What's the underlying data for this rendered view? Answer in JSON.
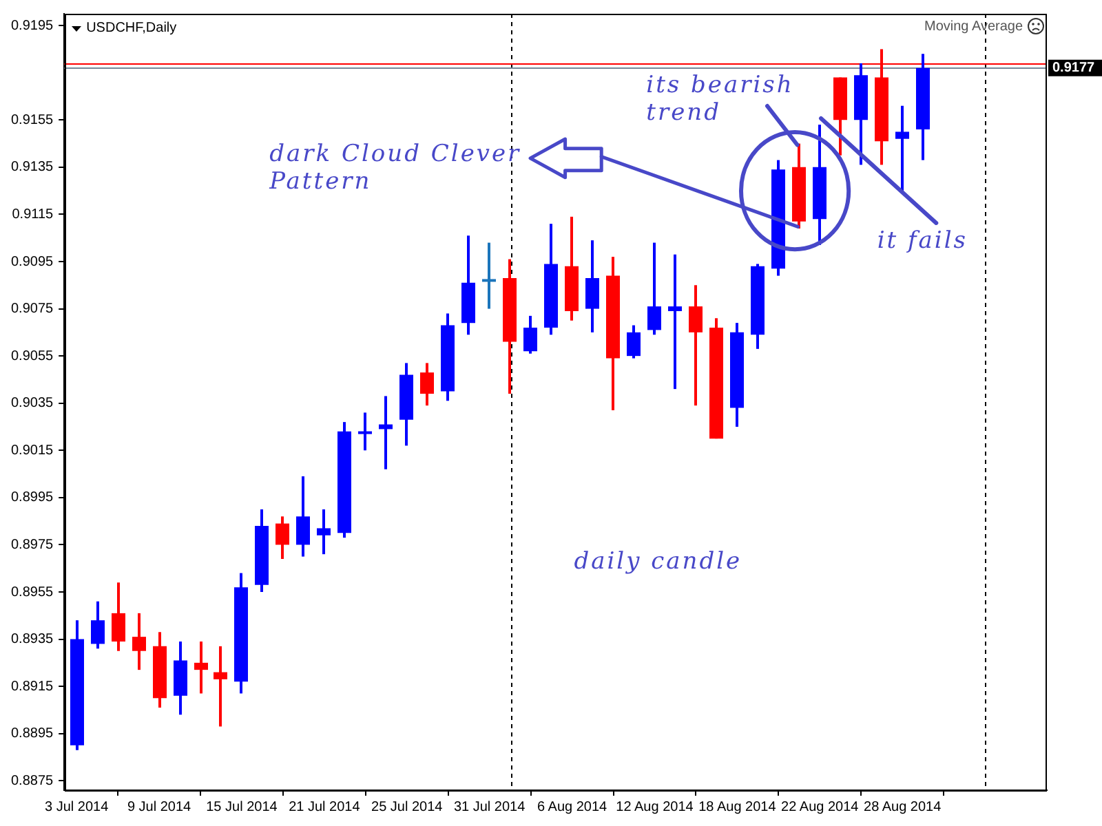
{
  "chart_data": {
    "type": "candlestick",
    "title": "USDCHF,Daily",
    "categories": [
      "3 Jul 2014",
      null,
      null,
      null,
      "9 Jul 2014",
      null,
      null,
      null,
      "15 Jul 2014",
      null,
      null,
      null,
      "21 Jul 2014",
      null,
      null,
      null,
      "25 Jul 2014",
      null,
      null,
      null,
      "31 Jul 2014",
      null,
      null,
      null,
      "6 Aug 2014",
      null,
      null,
      null,
      "12 Aug 2014",
      null,
      null,
      null,
      "18 Aug 2014",
      null,
      null,
      null,
      "22 Aug 2014",
      null,
      null,
      null,
      "28 Aug 2014",
      null
    ],
    "ohlc": [
      [
        0.889,
        0.8943,
        0.8888,
        0.8935
      ],
      [
        0.8933,
        0.8951,
        0.8931,
        0.8943
      ],
      [
        0.8946,
        0.8959,
        0.893,
        0.8934
      ],
      [
        0.8936,
        0.8946,
        0.8922,
        0.893
      ],
      [
        0.8932,
        0.8938,
        0.8906,
        0.891
      ],
      [
        0.8911,
        0.8934,
        0.8903,
        0.8926
      ],
      [
        0.8925,
        0.8934,
        0.8912,
        0.8922
      ],
      [
        0.8921,
        0.8932,
        0.8898,
        0.8918
      ],
      [
        0.8917,
        0.8963,
        0.8912,
        0.8957
      ],
      [
        0.8958,
        0.899,
        0.8955,
        0.8983
      ],
      [
        0.8984,
        0.8987,
        0.8969,
        0.8975
      ],
      [
        0.8975,
        0.9004,
        0.897,
        0.8987
      ],
      [
        0.8979,
        0.899,
        0.8971,
        0.8982
      ],
      [
        0.898,
        0.9027,
        0.8978,
        0.9023
      ],
      [
        0.9022,
        0.9031,
        0.9015,
        0.9023
      ],
      [
        0.9024,
        0.9038,
        0.9007,
        0.9026
      ],
      [
        0.9028,
        0.9052,
        0.9017,
        0.9047
      ],
      [
        0.9048,
        0.9052,
        0.9034,
        0.9039
      ],
      [
        0.904,
        0.9073,
        0.9036,
        0.9068
      ],
      [
        0.9069,
        0.9106,
        0.9064,
        0.9086
      ],
      [
        0.9087,
        0.9103,
        0.9075,
        0.9087
      ],
      [
        0.9088,
        0.9096,
        0.9039,
        0.9061
      ],
      [
        0.9057,
        0.9072,
        0.9056,
        0.9067
      ],
      [
        0.9067,
        0.9111,
        0.9064,
        0.9094
      ],
      [
        0.9093,
        0.9114,
        0.907,
        0.9074
      ],
      [
        0.9075,
        0.9104,
        0.9065,
        0.9088
      ],
      [
        0.9089,
        0.9097,
        0.9032,
        0.9054
      ],
      [
        0.9055,
        0.9068,
        0.9054,
        0.9065
      ],
      [
        0.9066,
        0.9103,
        0.9064,
        0.9076
      ],
      [
        0.9074,
        0.9098,
        0.9041,
        0.9076
      ],
      [
        0.9076,
        0.9085,
        0.9034,
        0.9065
      ],
      [
        0.9067,
        0.9071,
        0.902,
        0.902
      ],
      [
        0.9033,
        0.9069,
        0.9025,
        0.9065
      ],
      [
        0.9064,
        0.9094,
        0.9058,
        0.9093
      ],
      [
        0.9092,
        0.9138,
        0.9089,
        0.9134
      ],
      [
        0.9135,
        0.9145,
        0.9109,
        0.9112
      ],
      [
        0.9113,
        0.9153,
        0.9102,
        0.9135
      ],
      [
        0.9173,
        0.9173,
        0.914,
        0.9155
      ],
      [
        0.9155,
        0.9179,
        0.9136,
        0.9174
      ],
      [
        0.9173,
        0.9185,
        0.9136,
        0.9146
      ],
      [
        0.9147,
        0.9161,
        0.9125,
        0.915
      ],
      [
        0.9151,
        0.9183,
        0.9138,
        0.9177
      ]
    ],
    "colors": [
      "#0000ff",
      "#0000ff",
      "#ff0000",
      "#ff0000",
      "#ff0000",
      "#0000ff",
      "#ff0000",
      "#ff0000",
      "#0000ff",
      "#0000ff",
      "#ff0000",
      "#0000ff",
      "#0000ff",
      "#0000ff",
      "#0000ff",
      "#0000ff",
      "#0000ff",
      "#ff0000",
      "#0000ff",
      "#0000ff",
      "#1b75bb",
      "#ff0000",
      "#0000ff",
      "#0000ff",
      "#ff0000",
      "#0000ff",
      "#ff0000",
      "#0000ff",
      "#0000ff",
      "#0000ff",
      "#ff0000",
      "#ff0000",
      "#0000ff",
      "#0000ff",
      "#0000ff",
      "#ff0000",
      "#0000ff",
      "#ff0000",
      "#0000ff",
      "#ff0000",
      "#0000ff",
      "#0000ff"
    ],
    "ylim": [
      0.8871,
      0.92
    ],
    "yticks": [
      0.8875,
      0.8895,
      0.8915,
      0.8935,
      0.8955,
      0.8975,
      0.8995,
      0.9015,
      0.9035,
      0.9055,
      0.9075,
      0.9095,
      0.9115,
      0.9135,
      0.9155,
      0.9195
    ],
    "ref_lines": [
      {
        "axis": "y",
        "value": 0.9177,
        "label": "0.9177",
        "color": "#778899"
      },
      {
        "axis": "y",
        "value": 0.9179,
        "color": "#ff0000"
      }
    ],
    "annotations": [
      "Moving Average",
      "its bearish trend",
      "dark Cloud Clever Pattern",
      "it fails",
      "daily candle"
    ]
  }
}
